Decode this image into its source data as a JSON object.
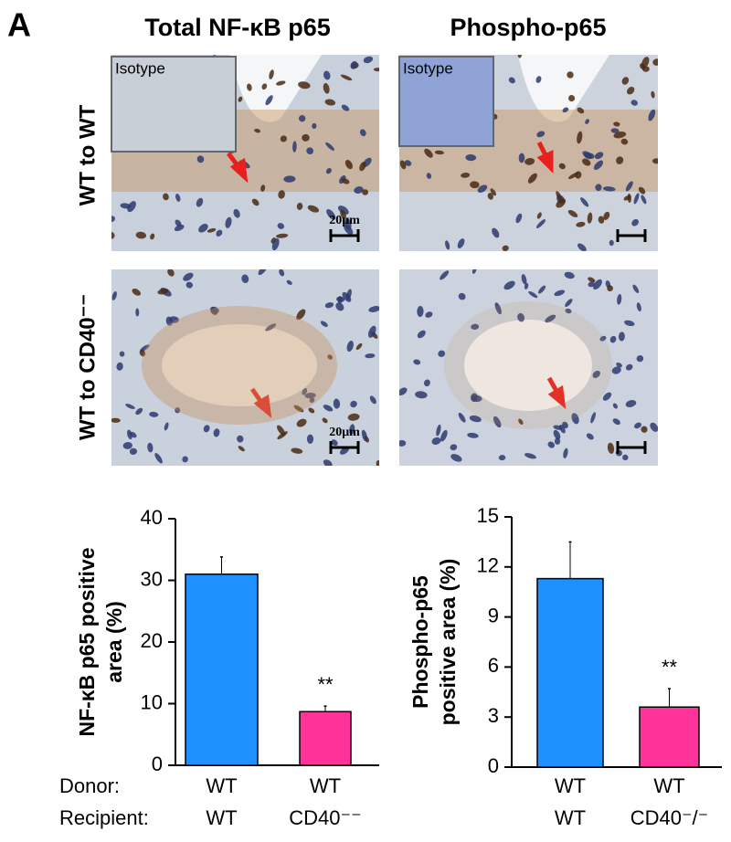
{
  "panel_label": "A",
  "column_titles": [
    "Total NF-κB p65",
    "Phospho-p65"
  ],
  "row_labels": [
    "WT to WT",
    "WT to CD40⁻⁻"
  ],
  "inset_labels": [
    "Isotype",
    "Isotype"
  ],
  "scale_labels": [
    "20μm",
    "20μm"
  ],
  "group_labels": [
    "Donor:",
    "Recipient:"
  ],
  "chart_data": [
    {
      "type": "bar",
      "y_label": [
        "NF-κB p65 positive",
        "area (%)"
      ],
      "categories": [
        [
          "WT",
          "WT"
        ],
        [
          "WT",
          "CD40⁻⁻"
        ]
      ],
      "values": [
        31,
        8.7
      ],
      "errors": [
        2.8,
        0.9
      ],
      "colors": [
        "#1e90ff",
        "#ff3399"
      ],
      "value_annotations": [
        null,
        "**"
      ],
      "ylim": [
        0,
        40
      ],
      "yticks": [
        0,
        10,
        20,
        30,
        40
      ]
    },
    {
      "type": "bar",
      "y_label": [
        "Phospho-p65",
        "positive area (%)"
      ],
      "categories": [
        [
          "WT",
          "WT"
        ],
        [
          "WT",
          "CD40⁻/⁻"
        ]
      ],
      "values": [
        11.3,
        3.6
      ],
      "errors": [
        2.2,
        1.1
      ],
      "colors": [
        "#1e90ff",
        "#ff3399"
      ],
      "value_annotations": [
        null,
        "**"
      ],
      "ylim": [
        0,
        15
      ],
      "yticks": [
        0,
        3,
        6,
        9,
        12,
        15
      ]
    }
  ]
}
